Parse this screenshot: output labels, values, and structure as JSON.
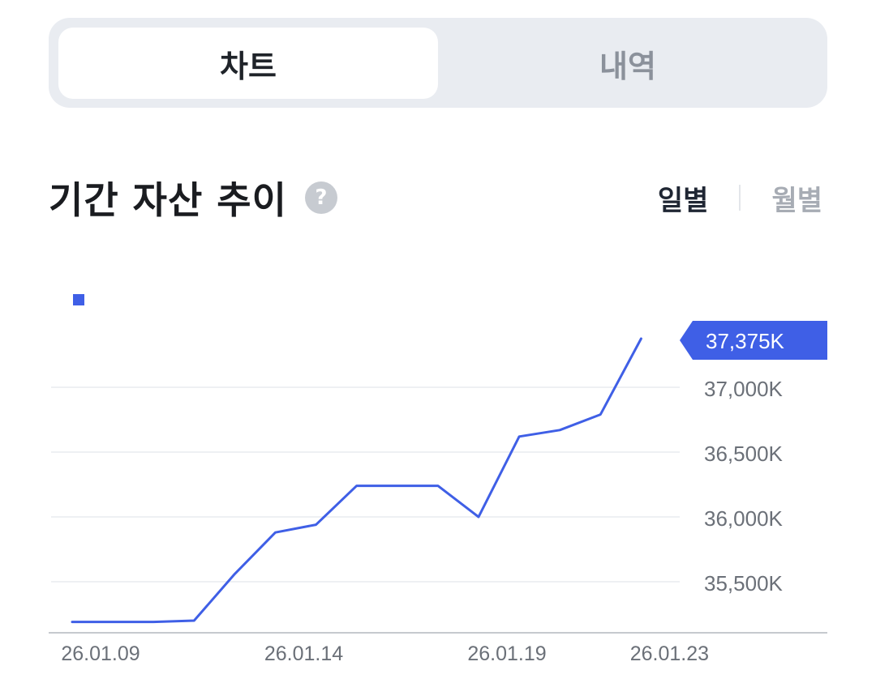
{
  "tabs": {
    "chart": "차트",
    "history": "내역"
  },
  "section": {
    "title": "기간 자산 추이",
    "help_glyph": "?"
  },
  "period": {
    "daily": "일별",
    "monthly": "월별"
  },
  "colors": {
    "line": "#3f5fe6",
    "grid": "#eef0f3",
    "axis": "#c6c9ce",
    "label": "#6b7078"
  },
  "chart_data": {
    "type": "line",
    "x": [
      "26.01.09",
      "26.01.10",
      "26.01.11",
      "26.01.12",
      "26.01.13",
      "26.01.14",
      "26.01.15",
      "26.01.16",
      "26.01.17",
      "26.01.18",
      "26.01.19",
      "26.01.20",
      "26.01.21",
      "26.01.22",
      "26.01.23"
    ],
    "series": [
      {
        "values": [
          35190,
          35190,
          35190,
          35200,
          35560,
          35880,
          35940,
          36240,
          36240,
          36240,
          36000,
          36620,
          36670,
          36790,
          37375
        ]
      }
    ],
    "y_ticks": [
      {
        "value": 37000,
        "label": "37,000K"
      },
      {
        "value": 36500,
        "label": "36,500K"
      },
      {
        "value": 36000,
        "label": "36,000K"
      },
      {
        "value": 35500,
        "label": "35,500K"
      }
    ],
    "x_ticks": [
      {
        "index": 0,
        "label": "26.01.09"
      },
      {
        "index": 5,
        "label": "26.01.14"
      },
      {
        "index": 10,
        "label": "26.01.19"
      },
      {
        "index": 14,
        "label": "26.01.23"
      }
    ],
    "current": {
      "value": 37375,
      "label": "37,375K"
    },
    "ylim": [
      35100,
      37500
    ],
    "grid": true,
    "y_axis_side": "right"
  }
}
